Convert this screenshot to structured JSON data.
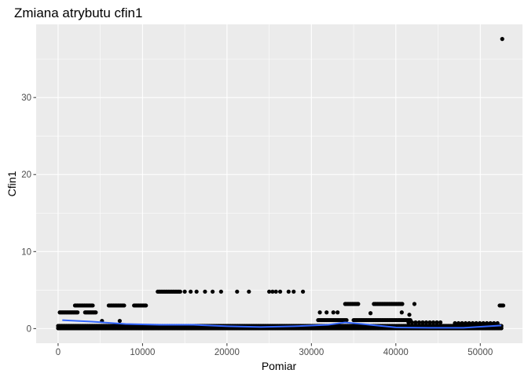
{
  "chart_data": {
    "type": "scatter",
    "title": "Zmiana atrybutu cfin1",
    "xlabel": "Pomiar",
    "ylabel": "Cfin1",
    "xlim": [
      -2600,
      55000
    ],
    "ylim": [
      -1.9,
      39.5
    ],
    "x_ticks": [
      0,
      10000,
      20000,
      30000,
      40000,
      50000
    ],
    "y_ticks": [
      0,
      10,
      20,
      30
    ],
    "grid": true,
    "legend": "none",
    "colors": {
      "panel": "#ebebeb",
      "grid": "#ffffff",
      "points": "#000000",
      "smooth": "#3366ff",
      "tick_text": "#4d4d4d"
    },
    "segments": [
      {
        "x_start": 0,
        "x_end": 52500,
        "y": 0.05,
        "dense": true
      },
      {
        "x_start": 0,
        "x_end": 52500,
        "y": 0.35,
        "dense": true
      },
      {
        "x_start": 200,
        "x_end": 2400,
        "y": 2.1,
        "dense": true
      },
      {
        "x_start": 2000,
        "x_end": 4200,
        "y": 3.0,
        "dense": true
      },
      {
        "x_start": 3200,
        "x_end": 4500,
        "y": 2.1,
        "dense": true
      },
      {
        "x_start": 6000,
        "x_end": 7900,
        "y": 3.0,
        "dense": true
      },
      {
        "x_start": 9000,
        "x_end": 10500,
        "y": 3.0,
        "dense": true
      },
      {
        "x_start": 11800,
        "x_end": 14500,
        "y": 4.8,
        "dense": true
      },
      {
        "x_start": 30800,
        "x_end": 34200,
        "y": 1.1,
        "dense": true
      },
      {
        "x_start": 34000,
        "x_end": 35600,
        "y": 3.2,
        "dense": true
      },
      {
        "x_start": 35000,
        "x_end": 41800,
        "y": 1.1,
        "dense": true
      },
      {
        "x_start": 37400,
        "x_end": 40800,
        "y": 3.2,
        "dense": true
      },
      {
        "x_start": 41500,
        "x_end": 45500,
        "y": 0.8,
        "dense": false
      },
      {
        "x_start": 47000,
        "x_end": 52400,
        "y": 0.7,
        "dense": false
      },
      {
        "x_start": 52300,
        "x_end": 52800,
        "y": 3.0,
        "dense": true
      }
    ],
    "points": [
      {
        "x": 52600,
        "y": 37.6
      },
      {
        "x": 15000,
        "y": 4.8
      },
      {
        "x": 15700,
        "y": 4.8
      },
      {
        "x": 16400,
        "y": 4.8
      },
      {
        "x": 17400,
        "y": 4.8
      },
      {
        "x": 18300,
        "y": 4.8
      },
      {
        "x": 19300,
        "y": 4.8
      },
      {
        "x": 21200,
        "y": 4.8
      },
      {
        "x": 22600,
        "y": 4.8
      },
      {
        "x": 25000,
        "y": 4.8
      },
      {
        "x": 25400,
        "y": 4.8
      },
      {
        "x": 25800,
        "y": 4.8
      },
      {
        "x": 26300,
        "y": 4.8
      },
      {
        "x": 27300,
        "y": 4.8
      },
      {
        "x": 27900,
        "y": 4.8
      },
      {
        "x": 29000,
        "y": 4.8
      },
      {
        "x": 31000,
        "y": 2.1
      },
      {
        "x": 31800,
        "y": 2.1
      },
      {
        "x": 32600,
        "y": 2.1
      },
      {
        "x": 33100,
        "y": 2.1
      },
      {
        "x": 42200,
        "y": 3.2
      },
      {
        "x": 40700,
        "y": 2.1
      },
      {
        "x": 41600,
        "y": 1.8
      },
      {
        "x": 5200,
        "y": 1.0
      },
      {
        "x": 7300,
        "y": 1.0
      },
      {
        "x": 37000,
        "y": 2.0
      }
    ],
    "smooth": {
      "x": [
        500,
        4000,
        8000,
        12000,
        16000,
        20000,
        24000,
        28000,
        32000,
        34000,
        36000,
        40000,
        44000,
        48000,
        52500
      ],
      "y": [
        1.1,
        0.9,
        0.6,
        0.5,
        0.5,
        0.3,
        0.2,
        0.3,
        0.5,
        0.8,
        0.6,
        0.15,
        0.1,
        0.1,
        0.4
      ]
    }
  }
}
